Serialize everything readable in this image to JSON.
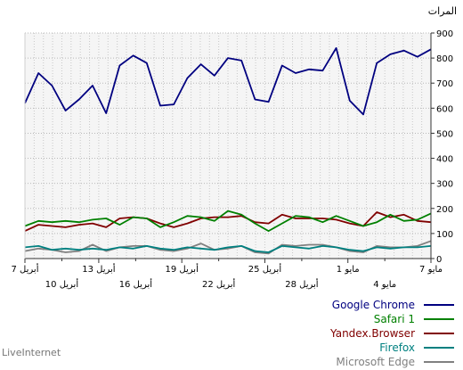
{
  "chart_data": {
    "type": "line",
    "ylabel": "المرات",
    "y_ticks": [
      "0",
      "100",
      "200",
      "300",
      "400",
      "500",
      "600",
      "700",
      "800",
      "900"
    ],
    "ylim": [
      0,
      900
    ],
    "xlim": [
      0,
      44
    ],
    "grid": true,
    "legend_position": "bottom-right",
    "x_labels_top": [
      {
        "x": 0,
        "label": "7 مايو"
      },
      {
        "x": 9,
        "label": "1 مايو"
      },
      {
        "x": 18,
        "label": "25 أبريل"
      },
      {
        "x": 27,
        "label": "19 أبريل"
      },
      {
        "x": 36,
        "label": "13 أبريل"
      },
      {
        "x": 44,
        "label": "7 أبريل"
      }
    ],
    "x_labels_bottom": [
      {
        "x": 5,
        "label": "4 مايو"
      },
      {
        "x": 14,
        "label": "28 أبريل"
      },
      {
        "x": 23,
        "label": "22 أبريل"
      },
      {
        "x": 32,
        "label": "16 أبريل"
      },
      {
        "x": 40,
        "label": "10 أبريل"
      }
    ],
    "series": [
      {
        "name": "Google Chrome",
        "color": "#000080",
        "values": [
          620,
          740,
          690,
          590,
          635,
          690,
          580,
          770,
          810,
          780,
          610,
          615,
          720,
          775,
          730,
          800,
          790,
          635,
          625,
          770,
          740,
          755,
          750,
          840,
          630,
          575,
          780,
          815,
          830,
          805,
          835
        ]
      },
      {
        "name": "Safari 1",
        "color": "#008000",
        "values": [
          130,
          150,
          145,
          150,
          145,
          155,
          160,
          135,
          165,
          160,
          125,
          145,
          170,
          165,
          150,
          190,
          175,
          140,
          110,
          140,
          170,
          165,
          145,
          170,
          150,
          130,
          145,
          175,
          150,
          155,
          180
        ]
      },
      {
        "name": "Yandex.Browser",
        "color": "#800000",
        "values": [
          110,
          135,
          130,
          125,
          135,
          140,
          125,
          160,
          165,
          160,
          140,
          125,
          140,
          160,
          165,
          165,
          170,
          145,
          140,
          175,
          160,
          160,
          160,
          155,
          140,
          130,
          185,
          165,
          175,
          150,
          145
        ]
      },
      {
        "name": "Firefox",
        "color": "#008080",
        "values": [
          45,
          50,
          35,
          40,
          35,
          40,
          35,
          45,
          40,
          50,
          40,
          35,
          45,
          40,
          35,
          45,
          50,
          30,
          25,
          50,
          45,
          40,
          50,
          45,
          35,
          30,
          45,
          40,
          45,
          45,
          50
        ]
      },
      {
        "name": "Microsoft Edge",
        "color": "#808080",
        "values": [
          30,
          40,
          35,
          25,
          30,
          55,
          30,
          45,
          50,
          50,
          35,
          30,
          40,
          60,
          35,
          40,
          50,
          25,
          20,
          55,
          50,
          55,
          55,
          45,
          30,
          25,
          50,
          45,
          45,
          50,
          70
        ]
      }
    ]
  },
  "footer": {
    "brand": "LiveInternet"
  }
}
